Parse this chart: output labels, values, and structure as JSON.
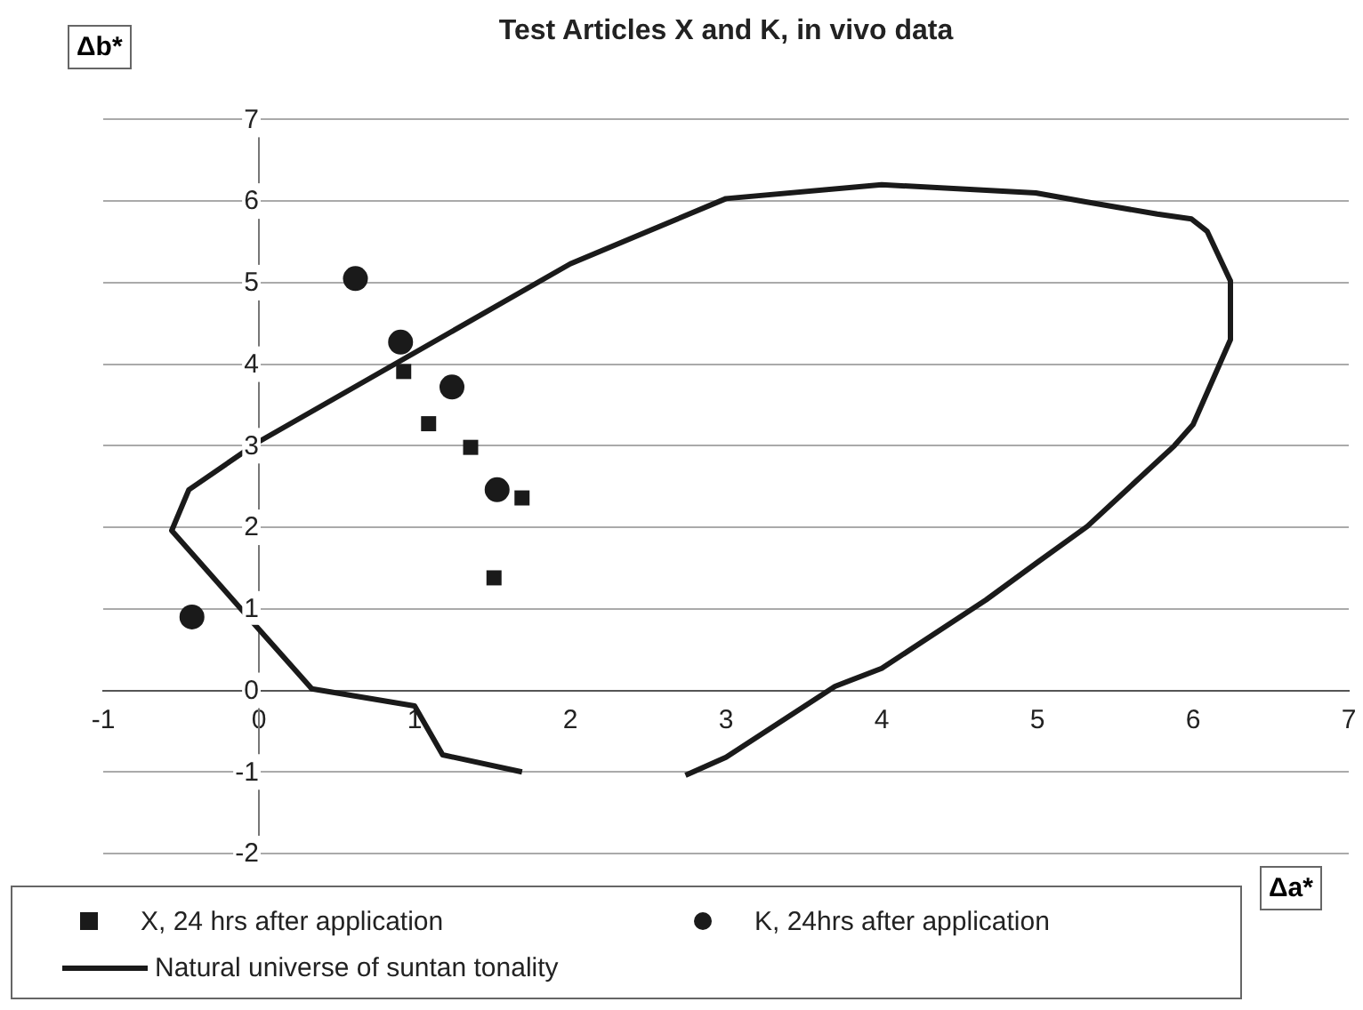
{
  "chart_data": {
    "type": "scatter",
    "title": "Test Articles X and K, in vivo data",
    "xlabel": "Δa*",
    "ylabel": "Δb*",
    "xlim": [
      -1,
      7
    ],
    "xticks": [
      -1,
      0,
      1,
      2,
      3,
      4,
      5,
      6,
      7
    ],
    "ylim": [
      -2,
      7
    ],
    "yticks": [
      -2,
      -1,
      0,
      1,
      2,
      3,
      4,
      5,
      6,
      7
    ],
    "grid": "y",
    "legend": "bottom",
    "series": [
      {
        "name": "X, 24 hrs after application",
        "marker": "square",
        "color": "#1a1a1a",
        "x": [
          0.93,
          1.09,
          1.36,
          1.69,
          1.51
        ],
        "values": [
          3.91,
          3.27,
          2.98,
          2.36,
          1.38
        ]
      },
      {
        "name": "K, 24hrs after application",
        "marker": "circle",
        "color": "#1a1a1a",
        "x": [
          0.62,
          0.91,
          1.24,
          1.53,
          -0.43
        ],
        "values": [
          5.05,
          4.27,
          3.72,
          2.46,
          0.9
        ]
      },
      {
        "name": "Natural universe of suntan tonality",
        "type": "line",
        "marker": "none",
        "color": "#1a1a1a",
        "x": [
          1.69,
          1.18,
          1.0,
          0.34,
          0.0,
          -0.56,
          -0.45,
          0.0,
          2.0,
          3.0,
          4.0,
          4.99,
          5.31,
          5.77,
          5.99,
          6.09,
          6.24,
          6.24,
          6.0,
          5.88,
          5.32,
          5.0,
          4.67,
          4.0,
          3.7,
          3.0,
          2.74
        ],
        "values": [
          -1.0,
          -0.79,
          -0.19,
          0.02,
          0.75,
          1.96,
          2.46,
          3.05,
          5.23,
          6.03,
          6.2,
          6.1,
          5.99,
          5.84,
          5.78,
          5.63,
          5.02,
          4.3,
          3.26,
          3.0,
          2.01,
          1.57,
          1.11,
          0.27,
          0.05,
          -0.82,
          -1.04
        ]
      }
    ]
  }
}
